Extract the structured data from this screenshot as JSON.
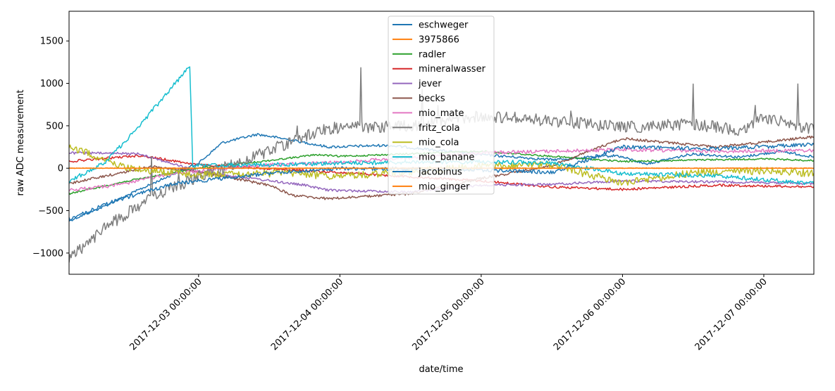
{
  "chart_data": {
    "type": "line",
    "xlabel": "date/time",
    "ylabel": "raw ADC measurement",
    "xlim": [
      "2017-12-02 02:00:00",
      "2017-12-07 08:30:00"
    ],
    "ylim": [
      -1250,
      1850
    ],
    "x_ticks": [
      "2017-12-03 00:00:00",
      "2017-12-04 00:00:00",
      "2017-12-05 00:00:00",
      "2017-12-06 00:00:00",
      "2017-12-07 00:00:00"
    ],
    "y_ticks": [
      -1000,
      -500,
      0,
      500,
      1000,
      1500
    ],
    "legend_position": "top-center",
    "grid": false,
    "series": [
      {
        "name": "eschweger",
        "color": "#1f77b4",
        "points": [
          [
            "2017-12-02 02:00",
            -620
          ],
          [
            "2017-12-02 08:00",
            -450
          ],
          [
            "2017-12-02 14:00",
            -250
          ],
          [
            "2017-12-02 20:00",
            -60
          ],
          [
            "2017-12-03 00:00",
            60
          ],
          [
            "2017-12-03 04:00",
            300
          ],
          [
            "2017-12-03 10:00",
            400
          ],
          [
            "2017-12-03 16:00",
            330
          ],
          [
            "2017-12-03 22:00",
            250
          ],
          [
            "2017-12-04 08:00",
            270
          ],
          [
            "2017-12-05 00:00",
            160
          ],
          [
            "2017-12-05 12:00",
            100
          ],
          [
            "2017-12-05 23:00",
            150
          ],
          [
            "2017-12-06 04:00",
            50
          ],
          [
            "2017-12-06 12:00",
            170
          ],
          [
            "2017-12-06 20:00",
            130
          ],
          [
            "2017-12-07 03:00",
            200
          ],
          [
            "2017-12-07 08:30",
            130
          ]
        ]
      },
      {
        "name": "3975866",
        "color": "#ff7f0e",
        "points": [
          [
            "2017-12-02 02:00",
            0
          ],
          [
            "2017-12-03 00:00",
            0
          ],
          [
            "2017-12-04 00:00",
            0
          ],
          [
            "2017-12-05 00:00",
            0
          ],
          [
            "2017-12-06 00:00",
            0
          ],
          [
            "2017-12-07 00:00",
            0
          ],
          [
            "2017-12-07 08:30",
            0
          ]
        ]
      },
      {
        "name": "radler",
        "color": "#2ca02c",
        "points": [
          [
            "2017-12-02 02:00",
            -300
          ],
          [
            "2017-12-02 12:00",
            -150
          ],
          [
            "2017-12-03 00:00",
            0
          ],
          [
            "2017-12-03 12:00",
            90
          ],
          [
            "2017-12-03 20:00",
            160
          ],
          [
            "2017-12-04 00:00",
            140
          ],
          [
            "2017-12-05 00:00",
            200
          ],
          [
            "2017-12-06 00:00",
            80
          ],
          [
            "2017-12-07 00:00",
            110
          ],
          [
            "2017-12-07 08:30",
            90
          ]
        ]
      },
      {
        "name": "mineralwasser",
        "color": "#d62728",
        "points": [
          [
            "2017-12-02 02:00",
            80
          ],
          [
            "2017-12-02 14:00",
            150
          ],
          [
            "2017-12-03 00:00",
            40
          ],
          [
            "2017-12-03 16:00",
            -20
          ],
          [
            "2017-12-04 00:00",
            -50
          ],
          [
            "2017-12-05 00:00",
            -150
          ],
          [
            "2017-12-05 12:00",
            -220
          ],
          [
            "2017-12-06 00:00",
            -250
          ],
          [
            "2017-12-06 16:00",
            -200
          ],
          [
            "2017-12-07 08:30",
            -220
          ]
        ]
      },
      {
        "name": "jever",
        "color": "#9467bd",
        "points": [
          [
            "2017-12-02 02:00",
            180
          ],
          [
            "2017-12-02 14:00",
            170
          ],
          [
            "2017-12-03 00:00",
            -40
          ],
          [
            "2017-12-03 18:00",
            -200
          ],
          [
            "2017-12-03 22:00",
            -260
          ],
          [
            "2017-12-04 12:00",
            -280
          ],
          [
            "2017-12-05 00:00",
            -200
          ],
          [
            "2017-12-05 12:00",
            -190
          ],
          [
            "2017-12-06 00:00",
            -150
          ],
          [
            "2017-12-06 16:00",
            -160
          ],
          [
            "2017-12-07 08:30",
            -180
          ]
        ]
      },
      {
        "name": "becks",
        "color": "#8c564b",
        "points": [
          [
            "2017-12-02 02:00",
            -180
          ],
          [
            "2017-12-02 16:00",
            20
          ],
          [
            "2017-12-03 00:00",
            -40
          ],
          [
            "2017-12-03 12:00",
            -200
          ],
          [
            "2017-12-03 16:00",
            -320
          ],
          [
            "2017-12-03 22:00",
            -360
          ],
          [
            "2017-12-04 12:00",
            -300
          ],
          [
            "2017-12-05 00:00",
            -120
          ],
          [
            "2017-12-05 12:00",
            30
          ],
          [
            "2017-12-06 00:00",
            350
          ],
          [
            "2017-12-06 16:00",
            250
          ],
          [
            "2017-12-07 08:30",
            370
          ]
        ]
      },
      {
        "name": "mio_mate",
        "color": "#e377c2",
        "points": [
          [
            "2017-12-02 02:00",
            -260
          ],
          [
            "2017-12-02 10:00",
            -200
          ],
          [
            "2017-12-02 20:00",
            -60
          ],
          [
            "2017-12-03 12:00",
            40
          ],
          [
            "2017-12-04 00:00",
            70
          ],
          [
            "2017-12-05 00:00",
            180
          ],
          [
            "2017-12-05 12:00",
            200
          ],
          [
            "2017-12-06 00:00",
            220
          ],
          [
            "2017-12-06 16:00",
            200
          ],
          [
            "2017-12-07 08:30",
            210
          ]
        ]
      },
      {
        "name": "fritz_cola",
        "color": "#7f7f7f",
        "points": [
          [
            "2017-12-02 02:00",
            -1080
          ],
          [
            "2017-12-02 08:00",
            -700
          ],
          [
            "2017-12-02 16:00",
            -350
          ],
          [
            "2017-12-03 00:00",
            -100
          ],
          [
            "2017-12-03 10:00",
            150
          ],
          [
            "2017-12-03 18:00",
            380
          ],
          [
            "2017-12-03 22:00",
            470
          ],
          [
            "2017-12-04 12:00",
            500
          ],
          [
            "2017-12-05 00:00",
            620
          ],
          [
            "2017-12-05 12:00",
            560
          ],
          [
            "2017-12-06 00:00",
            480
          ],
          [
            "2017-12-06 12:00",
            520
          ],
          [
            "2017-12-06 20:00",
            450
          ],
          [
            "2017-12-07 00:00",
            600
          ],
          [
            "2017-12-07 08:30",
            450
          ]
        ]
      },
      {
        "name": "mio_cola",
        "color": "#bcbd22",
        "points": [
          [
            "2017-12-02 02:00",
            260
          ],
          [
            "2017-12-02 12:00",
            0
          ],
          [
            "2017-12-03 00:00",
            -80
          ],
          [
            "2017-12-03 16:00",
            -60
          ],
          [
            "2017-12-04 00:00",
            -100
          ],
          [
            "2017-12-05 00:00",
            20
          ],
          [
            "2017-12-05 12:00",
            40
          ],
          [
            "2017-12-06 00:00",
            -180
          ],
          [
            "2017-12-06 12:00",
            -50
          ],
          [
            "2017-12-07 00:00",
            -30
          ],
          [
            "2017-12-07 08:30",
            -60
          ]
        ]
      },
      {
        "name": "mio_banane",
        "color": "#17becf",
        "points": [
          [
            "2017-12-02 02:00",
            -150
          ],
          [
            "2017-12-02 08:00",
            60
          ],
          [
            "2017-12-02 14:00",
            500
          ],
          [
            "2017-12-02 20:00",
            1000
          ],
          [
            "2017-12-02 22:30",
            1200
          ],
          [
            "2017-12-02 23:00",
            30
          ],
          [
            "2017-12-03 12:00",
            40
          ],
          [
            "2017-12-04 00:00",
            60
          ],
          [
            "2017-12-05 00:00",
            80
          ],
          [
            "2017-12-05 12:00",
            60
          ],
          [
            "2017-12-06 00:00",
            -60
          ],
          [
            "2017-12-06 16:00",
            -90
          ],
          [
            "2017-12-07 08:30",
            -180
          ]
        ]
      },
      {
        "name": "jacobinus",
        "color": "#1f77b4",
        "points": [
          [
            "2017-12-02 02:00",
            -600
          ],
          [
            "2017-12-02 10:00",
            -380
          ],
          [
            "2017-12-02 20:00",
            -180
          ],
          [
            "2017-12-03 12:00",
            -60
          ],
          [
            "2017-12-04 00:00",
            0
          ],
          [
            "2017-12-05 00:00",
            -20
          ],
          [
            "2017-12-05 12:00",
            -50
          ],
          [
            "2017-12-06 00:00",
            250
          ],
          [
            "2017-12-06 16:00",
            230
          ],
          [
            "2017-12-07 08:30",
            280
          ]
        ]
      },
      {
        "name": "mio_ginger",
        "color": "#ff7f0e",
        "points": [
          [
            "2017-12-02 02:00",
            0
          ],
          [
            "2017-12-03 00:00",
            0
          ],
          [
            "2017-12-04 00:00",
            0
          ],
          [
            "2017-12-05 00:00",
            0
          ],
          [
            "2017-12-06 00:00",
            0
          ],
          [
            "2017-12-07 00:00",
            0
          ],
          [
            "2017-12-07 08:30",
            0
          ]
        ]
      }
    ]
  }
}
